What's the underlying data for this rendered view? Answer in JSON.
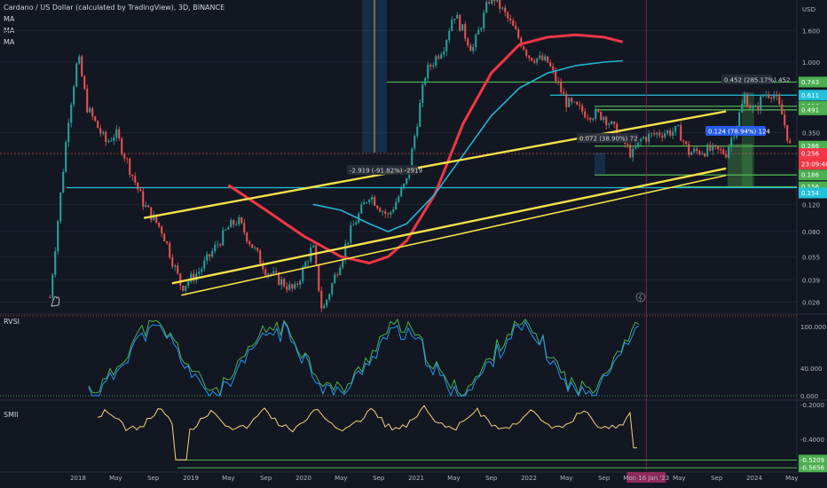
{
  "header": {
    "title": "Cardano / US Dollar (calculated by TradingView), 3D, BINANCE",
    "ma_labels": [
      "MA",
      "MA",
      "MA"
    ],
    "currency": "USD"
  },
  "colors": {
    "background": "#131722",
    "up_candle": "#26a69a",
    "down_candle": "#ef5350",
    "trend_lines": "#f5e04a",
    "ma_red": "#f23645",
    "ma_cyan": "#22b4d4",
    "hline_green": "#4caf50",
    "hline_cyan": "#22c1dc",
    "rvsi_green": "#4caf50",
    "rvsi_red": "#f23645",
    "rvsi_blue": "#2196f3",
    "smii_line": "#f5d17a"
  },
  "chart_data": [
    {
      "type": "candlestick",
      "title": "Cardano / US Dollar (calculated by TradingView), 3D, BINANCE",
      "y_scale": "log",
      "ylabel": "USD",
      "y_ticks": [
        "1.600",
        "1.000",
        "0.350",
        "0.120",
        "0.080",
        "0.055",
        "0.039",
        "0.028"
      ],
      "y_tick_values": [
        1.6,
        1.0,
        0.35,
        0.12,
        0.08,
        0.055,
        0.039,
        0.028
      ],
      "x_ticks": [
        "2018",
        "May",
        "Sep",
        "2019",
        "May",
        "Sep",
        "2020",
        "May",
        "Sep",
        "2021",
        "May",
        "Sep",
        "2022",
        "May",
        "Sep",
        "Mon 16 Jan '23",
        "May",
        "Sep",
        "2024",
        "May"
      ],
      "ylim": [
        0.025,
        2.4
      ],
      "price_labels": [
        {
          "value": "0.743",
          "kind": "green"
        },
        {
          "value": "0.611",
          "kind": "cyan"
        },
        {
          "value": "0.518",
          "kind": "green"
        },
        {
          "value": "0.491",
          "kind": "green"
        },
        {
          "value": "0.286",
          "kind": "green"
        },
        {
          "value": "0.256",
          "kind": "red"
        },
        {
          "value": "23:09:48",
          "kind": "red"
        },
        {
          "value": "0.186",
          "kind": "green"
        },
        {
          "value": "0.156",
          "kind": "green"
        },
        {
          "value": "0.154",
          "kind": "cyan"
        }
      ],
      "annotations": [
        {
          "text": "-2.919 (-91.82%) -2919",
          "kind": "measure-down"
        },
        {
          "text": "0.072 (38.90%) 72",
          "kind": "measure-up"
        },
        {
          "text": "0.124 (78.94%) 124",
          "kind": "measure-up"
        },
        {
          "text": "0.452 (285.17%) 452",
          "kind": "measure-up"
        }
      ],
      "close_series": [
        {
          "date": "2017-10",
          "close": 0.03
        },
        {
          "date": "2017-12",
          "close": 0.45
        },
        {
          "date": "2018-01",
          "close": 1.1
        },
        {
          "date": "2018-02",
          "close": 0.5
        },
        {
          "date": "2018-04",
          "close": 0.3
        },
        {
          "date": "2018-05",
          "close": 0.35
        },
        {
          "date": "2018-08",
          "close": 0.12
        },
        {
          "date": "2018-10",
          "close": 0.08
        },
        {
          "date": "2018-12",
          "close": 0.035
        },
        {
          "date": "2019-02",
          "close": 0.045
        },
        {
          "date": "2019-05",
          "close": 0.085
        },
        {
          "date": "2019-06",
          "close": 0.095
        },
        {
          "date": "2019-09",
          "close": 0.045
        },
        {
          "date": "2019-12",
          "close": 0.033
        },
        {
          "date": "2020-02",
          "close": 0.065
        },
        {
          "date": "2020-03",
          "close": 0.024
        },
        {
          "date": "2020-06",
          "close": 0.08
        },
        {
          "date": "2020-08",
          "close": 0.14
        },
        {
          "date": "2020-10",
          "close": 0.1
        },
        {
          "date": "2020-12",
          "close": 0.17
        },
        {
          "date": "2021-02",
          "close": 0.85
        },
        {
          "date": "2021-04",
          "close": 1.3
        },
        {
          "date": "2021-05",
          "close": 2.1
        },
        {
          "date": "2021-07",
          "close": 1.2
        },
        {
          "date": "2021-09",
          "close": 2.8
        },
        {
          "date": "2021-11",
          "close": 1.8
        },
        {
          "date": "2022-01",
          "close": 1.1
        },
        {
          "date": "2022-03",
          "close": 1.0
        },
        {
          "date": "2022-05",
          "close": 0.55
        },
        {
          "date": "2022-07",
          "close": 0.47
        },
        {
          "date": "2022-09",
          "close": 0.45
        },
        {
          "date": "2022-11",
          "close": 0.31
        },
        {
          "date": "2022-12",
          "close": 0.25
        },
        {
          "date": "2023-01",
          "close": 0.32
        },
        {
          "date": "2023-03",
          "close": 0.35
        },
        {
          "date": "2023-05",
          "close": 0.36
        },
        {
          "date": "2023-06",
          "close": 0.26
        },
        {
          "date": "2023-08",
          "close": 0.27
        },
        {
          "date": "2023-10",
          "close": 0.26
        },
        {
          "date": "2023-11",
          "close": 0.38
        },
        {
          "date": "2023-12",
          "close": 0.6
        },
        {
          "date": "2024-01",
          "close": 0.47
        },
        {
          "date": "2024-02",
          "close": 0.62
        },
        {
          "date": "2024-03",
          "close": 0.64
        },
        {
          "date": "2024-04",
          "close": 0.45
        },
        {
          "date": "2024-05",
          "close": 0.256
        }
      ]
    },
    {
      "type": "line",
      "title": "RVSI",
      "y_ticks": [
        "100.000",
        "40.000",
        "0.000"
      ],
      "y_tick_values": [
        100,
        40,
        0
      ],
      "ylim": [
        -5,
        115
      ]
    },
    {
      "type": "line",
      "title": "SMII",
      "y_ticks": [
        "-0.2000",
        "-0.4000",
        "-0.5209",
        "-0.5656"
      ],
      "y_tick_values": [
        -0.2,
        -0.4,
        -0.5209,
        -0.5656
      ],
      "ylim": [
        -0.58,
        -0.18
      ]
    }
  ]
}
